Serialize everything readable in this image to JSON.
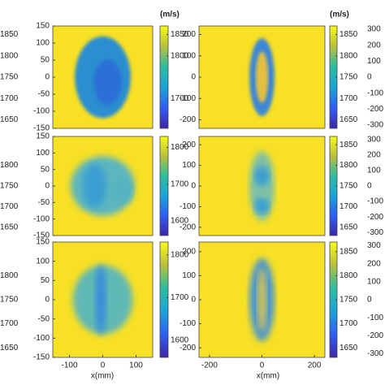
{
  "x_label": "x(mm)",
  "unit": "(m/s)",
  "middle": {
    "xlim": [
      -150,
      150
    ],
    "ylim": [
      -150,
      150
    ],
    "xticks": [
      -100,
      0,
      100
    ],
    "yticks": [
      150,
      100,
      50,
      0,
      -50,
      -100,
      -150
    ]
  },
  "right": {
    "xlim": [
      -240,
      240
    ],
    "ylim": [
      -240,
      240
    ],
    "xticks": [
      -200,
      0,
      200
    ],
    "yticks": [
      200,
      100,
      0,
      -100,
      -200
    ]
  },
  "far_right": {
    "ylim": [
      -320,
      320
    ],
    "yticks": [
      300,
      200,
      100,
      0,
      -100,
      -200,
      -300
    ]
  },
  "rows": [
    {
      "left_clim": [
        1630,
        1870
      ],
      "left_cbar": [
        1850,
        1800,
        1750,
        1700,
        1650
      ],
      "middle_clim": [
        1630,
        1870
      ],
      "middle_cbar": [
        1850,
        1800,
        1700
      ],
      "right_clim": [
        1630,
        1870
      ],
      "right_cbar": [
        1850,
        1800,
        1750,
        1700,
        1650
      ]
    },
    {
      "left_clim": [
        1630,
        1870
      ],
      "left_cbar": [
        1800,
        1750,
        1700,
        1650
      ],
      "middle_clim": [
        1560,
        1830
      ],
      "middle_cbar": [
        1800,
        1700,
        1600
      ],
      "right_clim": [
        1630,
        1870
      ],
      "right_cbar": [
        1850,
        1800,
        1750,
        1700,
        1650
      ]
    },
    {
      "left_clim": [
        1630,
        1870
      ],
      "left_cbar": [
        1800,
        1750,
        1700,
        1650
      ],
      "middle_clim": [
        1560,
        1830
      ],
      "middle_cbar": [
        1800,
        1700,
        1600
      ],
      "right_clim": [
        1630,
        1870
      ],
      "right_cbar": [
        1850,
        1800,
        1750,
        1700,
        1650
      ]
    }
  ]
}
